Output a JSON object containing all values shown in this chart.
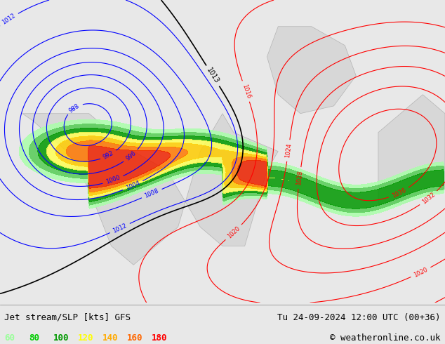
{
  "title_left": "Jet stream/SLP [kts] GFS",
  "title_right": "Tu 24-09-2024 12:00 UTC (00+36)",
  "copyright": "© weatheronline.co.uk",
  "legend_values": [
    "60",
    "80",
    "100",
    "120",
    "140",
    "160",
    "180"
  ],
  "legend_colors": [
    "#99ff99",
    "#00cc00",
    "#009900",
    "#ffff00",
    "#ffaa00",
    "#ff6600",
    "#ff0000"
  ],
  "bg_color": "#e8e8e8",
  "map_bg": "#d4e8d4",
  "figsize": [
    6.34,
    4.9
  ],
  "dpi": 100
}
